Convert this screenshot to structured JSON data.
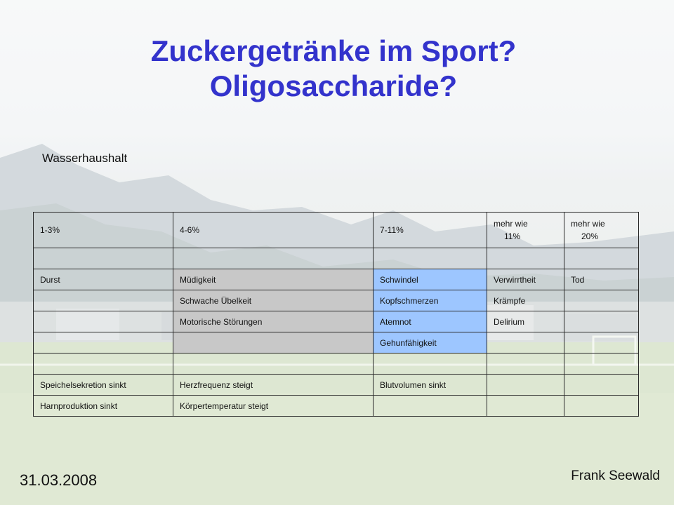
{
  "slide": {
    "title_line1": "Zuckergetränke im Sport?",
    "title_line2": "Oligosaccharide?",
    "subtitle": "Wasserhaushalt",
    "date": "31.03.2008",
    "author": "Frank Seewald"
  },
  "table": {
    "headers": [
      "1-3%",
      "4-6%",
      "7-11%",
      "mehr wie",
      "11%",
      "mehr wie",
      "20%"
    ],
    "rows": [
      [
        "",
        "",
        "",
        "",
        ""
      ],
      [
        "Durst",
        "Müdigkeit",
        "Schwindel",
        "Verwirrtheit",
        "Tod"
      ],
      [
        "",
        "Schwache Übelkeit",
        "Kopfschmerzen",
        "Krämpfe",
        ""
      ],
      [
        "",
        "Motorische Störungen",
        "Atemnot",
        "Delirium",
        ""
      ],
      [
        "",
        "",
        "Gehunfähigkeit",
        "",
        ""
      ],
      [
        "",
        "",
        "",
        "",
        ""
      ],
      [
        "Speichelsekretion sinkt",
        "Herzfrequenz steigt",
        "Blutvolumen sinkt",
        "",
        ""
      ],
      [
        "Harnproduktion sinkt",
        "Körpertemperatur steigt",
        "",
        "",
        ""
      ]
    ],
    "highlight_colors": {
      "grey": "#c8c8c8",
      "blue": "#9dc6ff"
    }
  },
  "colors": {
    "title": "#3333cc"
  }
}
